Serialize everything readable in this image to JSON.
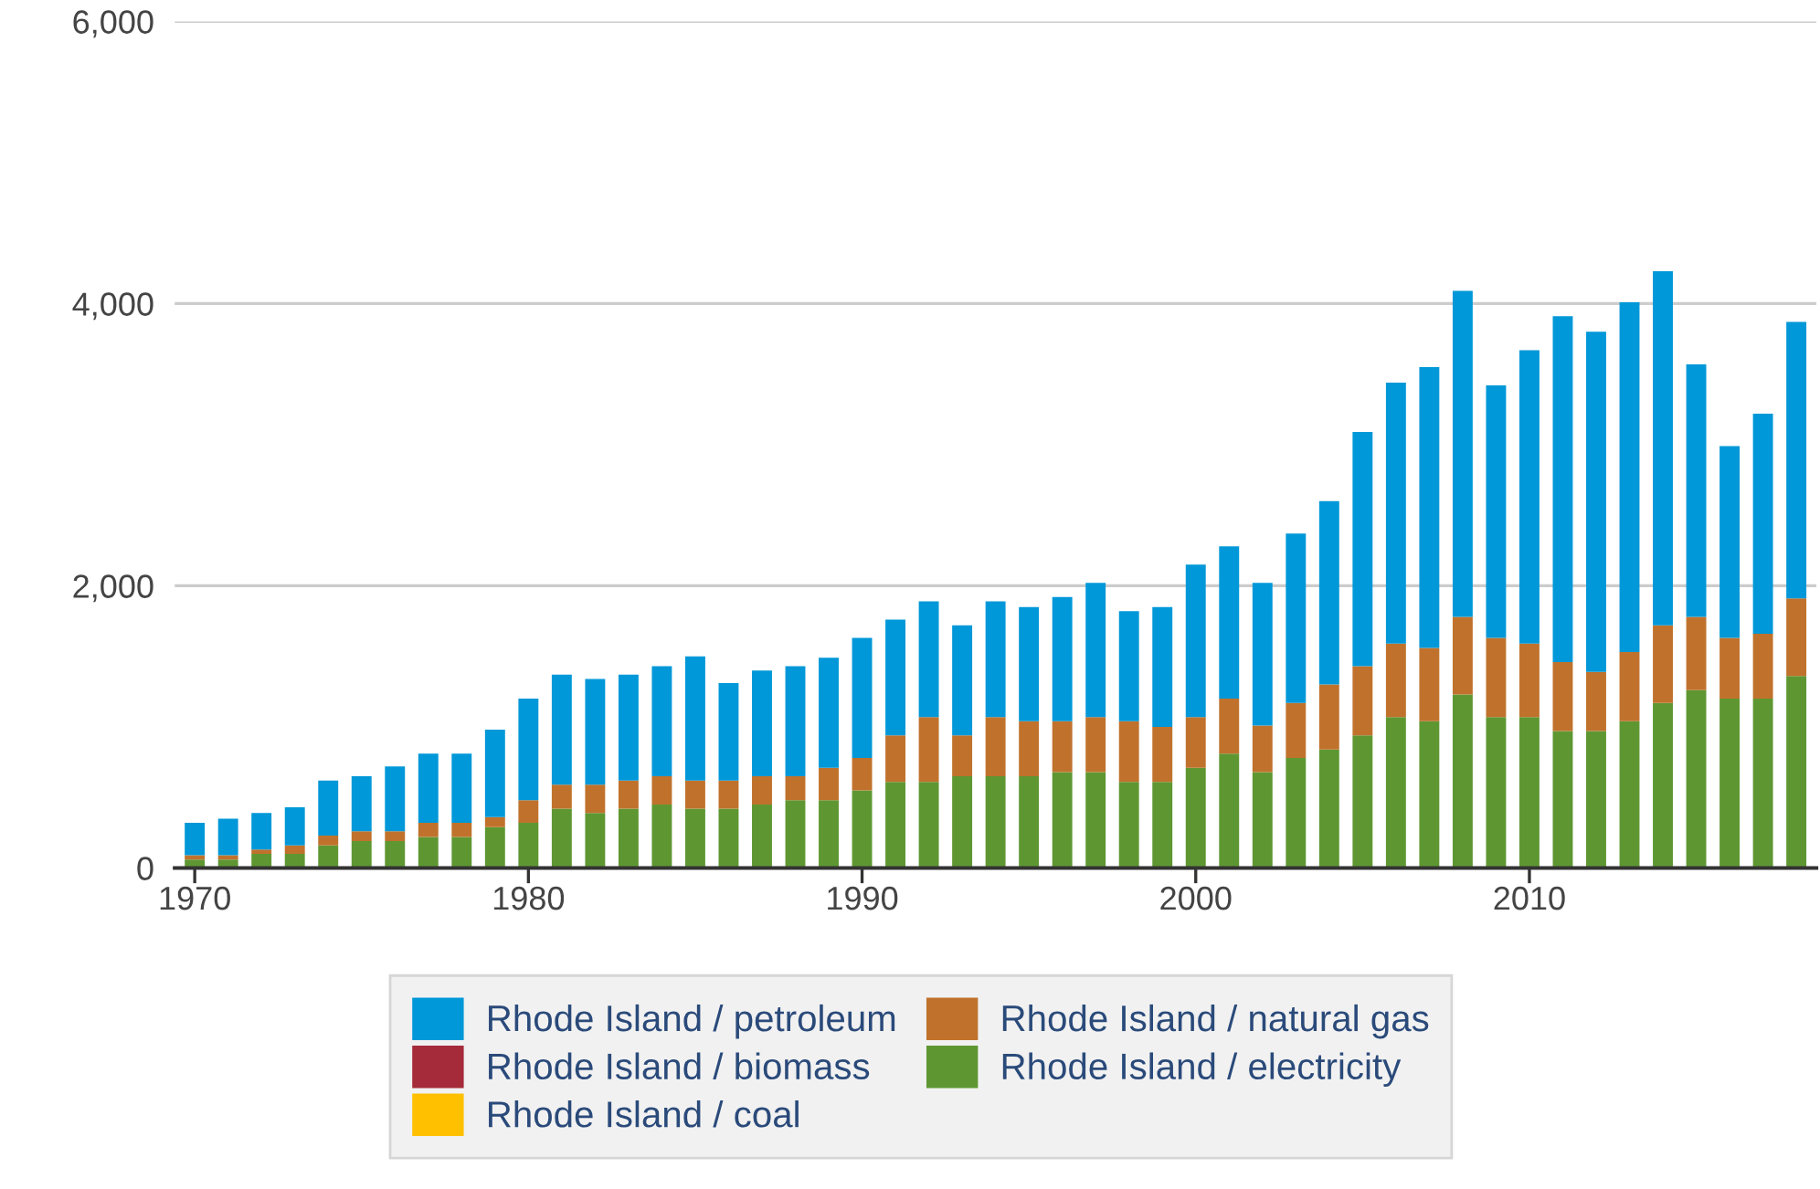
{
  "chart_data": {
    "type": "bar",
    "stacked": true,
    "x": [
      1970,
      1971,
      1972,
      1973,
      1974,
      1975,
      1976,
      1977,
      1978,
      1979,
      1980,
      1981,
      1982,
      1983,
      1984,
      1985,
      1986,
      1987,
      1988,
      1989,
      1990,
      1991,
      1992,
      1993,
      1994,
      1995,
      1996,
      1997,
      1998,
      1999,
      2000,
      2001,
      2002,
      2003,
      2004,
      2005,
      2006,
      2007,
      2008,
      2009,
      2010,
      2011,
      2012,
      2013,
      2014,
      2015,
      2016,
      2017,
      2018
    ],
    "series": [
      {
        "name": "Rhode Island / electricity",
        "color": "#5e9732",
        "values": [
          60,
          60,
          100,
          100,
          160,
          190,
          190,
          220,
          220,
          290,
          320,
          420,
          390,
          420,
          450,
          420,
          420,
          450,
          480,
          480,
          550,
          610,
          610,
          650,
          650,
          650,
          680,
          680,
          610,
          610,
          710,
          810,
          680,
          780,
          840,
          940,
          1070,
          1040,
          1230,
          1070,
          1070,
          970,
          970,
          1040,
          1170,
          1260,
          1200,
          1200,
          1360
        ]
      },
      {
        "name": "Rhode Island / natural gas",
        "color": "#c0722c",
        "values": [
          30,
          30,
          30,
          60,
          70,
          70,
          70,
          100,
          100,
          70,
          160,
          170,
          200,
          200,
          200,
          200,
          200,
          200,
          170,
          230,
          230,
          330,
          460,
          290,
          420,
          390,
          360,
          390,
          430,
          390,
          360,
          390,
          330,
          390,
          460,
          490,
          520,
          520,
          550,
          560,
          520,
          490,
          420,
          490,
          550,
          520,
          430,
          460,
          550
        ]
      },
      {
        "name": "Rhode Island / coal",
        "color": "#ffc000",
        "values": [
          0,
          0,
          0,
          0,
          0,
          0,
          0,
          0,
          0,
          0,
          0,
          0,
          0,
          0,
          0,
          0,
          0,
          0,
          0,
          0,
          0,
          0,
          0,
          0,
          0,
          0,
          0,
          0,
          0,
          0,
          0,
          0,
          0,
          0,
          0,
          0,
          0,
          0,
          0,
          0,
          0,
          0,
          0,
          0,
          0,
          0,
          0,
          0,
          0
        ]
      },
      {
        "name": "Rhode Island / biomass",
        "color": "#a52a3a",
        "values": [
          0,
          0,
          0,
          0,
          0,
          0,
          0,
          0,
          0,
          0,
          0,
          0,
          0,
          0,
          0,
          0,
          0,
          0,
          0,
          0,
          0,
          0,
          0,
          0,
          0,
          0,
          0,
          0,
          0,
          0,
          0,
          0,
          0,
          0,
          0,
          0,
          0,
          0,
          0,
          0,
          0,
          0,
          0,
          0,
          0,
          0,
          0,
          0,
          0
        ]
      },
      {
        "name": "Rhode Island / petroleum",
        "color": "#0098d8",
        "values": [
          230,
          260,
          260,
          270,
          390,
          390,
          460,
          490,
          490,
          620,
          720,
          780,
          750,
          750,
          780,
          880,
          690,
          750,
          780,
          780,
          850,
          820,
          820,
          780,
          820,
          810,
          880,
          950,
          780,
          850,
          1080,
          1080,
          1010,
          1200,
          1300,
          1660,
          1850,
          1990,
          2310,
          1790,
          2080,
          2450,
          2410,
          2480,
          2510,
          1790,
          1360,
          1560,
          1960
        ]
      }
    ],
    "xlim": [
      1969.4,
      2018.6
    ],
    "xticks": [
      1970,
      1980,
      1990,
      2000,
      2010
    ],
    "ylim": [
      0,
      6000
    ],
    "yticks": [
      {
        "value": 0,
        "label": "0"
      },
      {
        "value": 2000,
        "label": "2,000"
      },
      {
        "value": 4000,
        "label": "4,000"
      },
      {
        "value": 6000,
        "label": "6,000"
      }
    ],
    "grid": "y",
    "legend": "bottom"
  }
}
